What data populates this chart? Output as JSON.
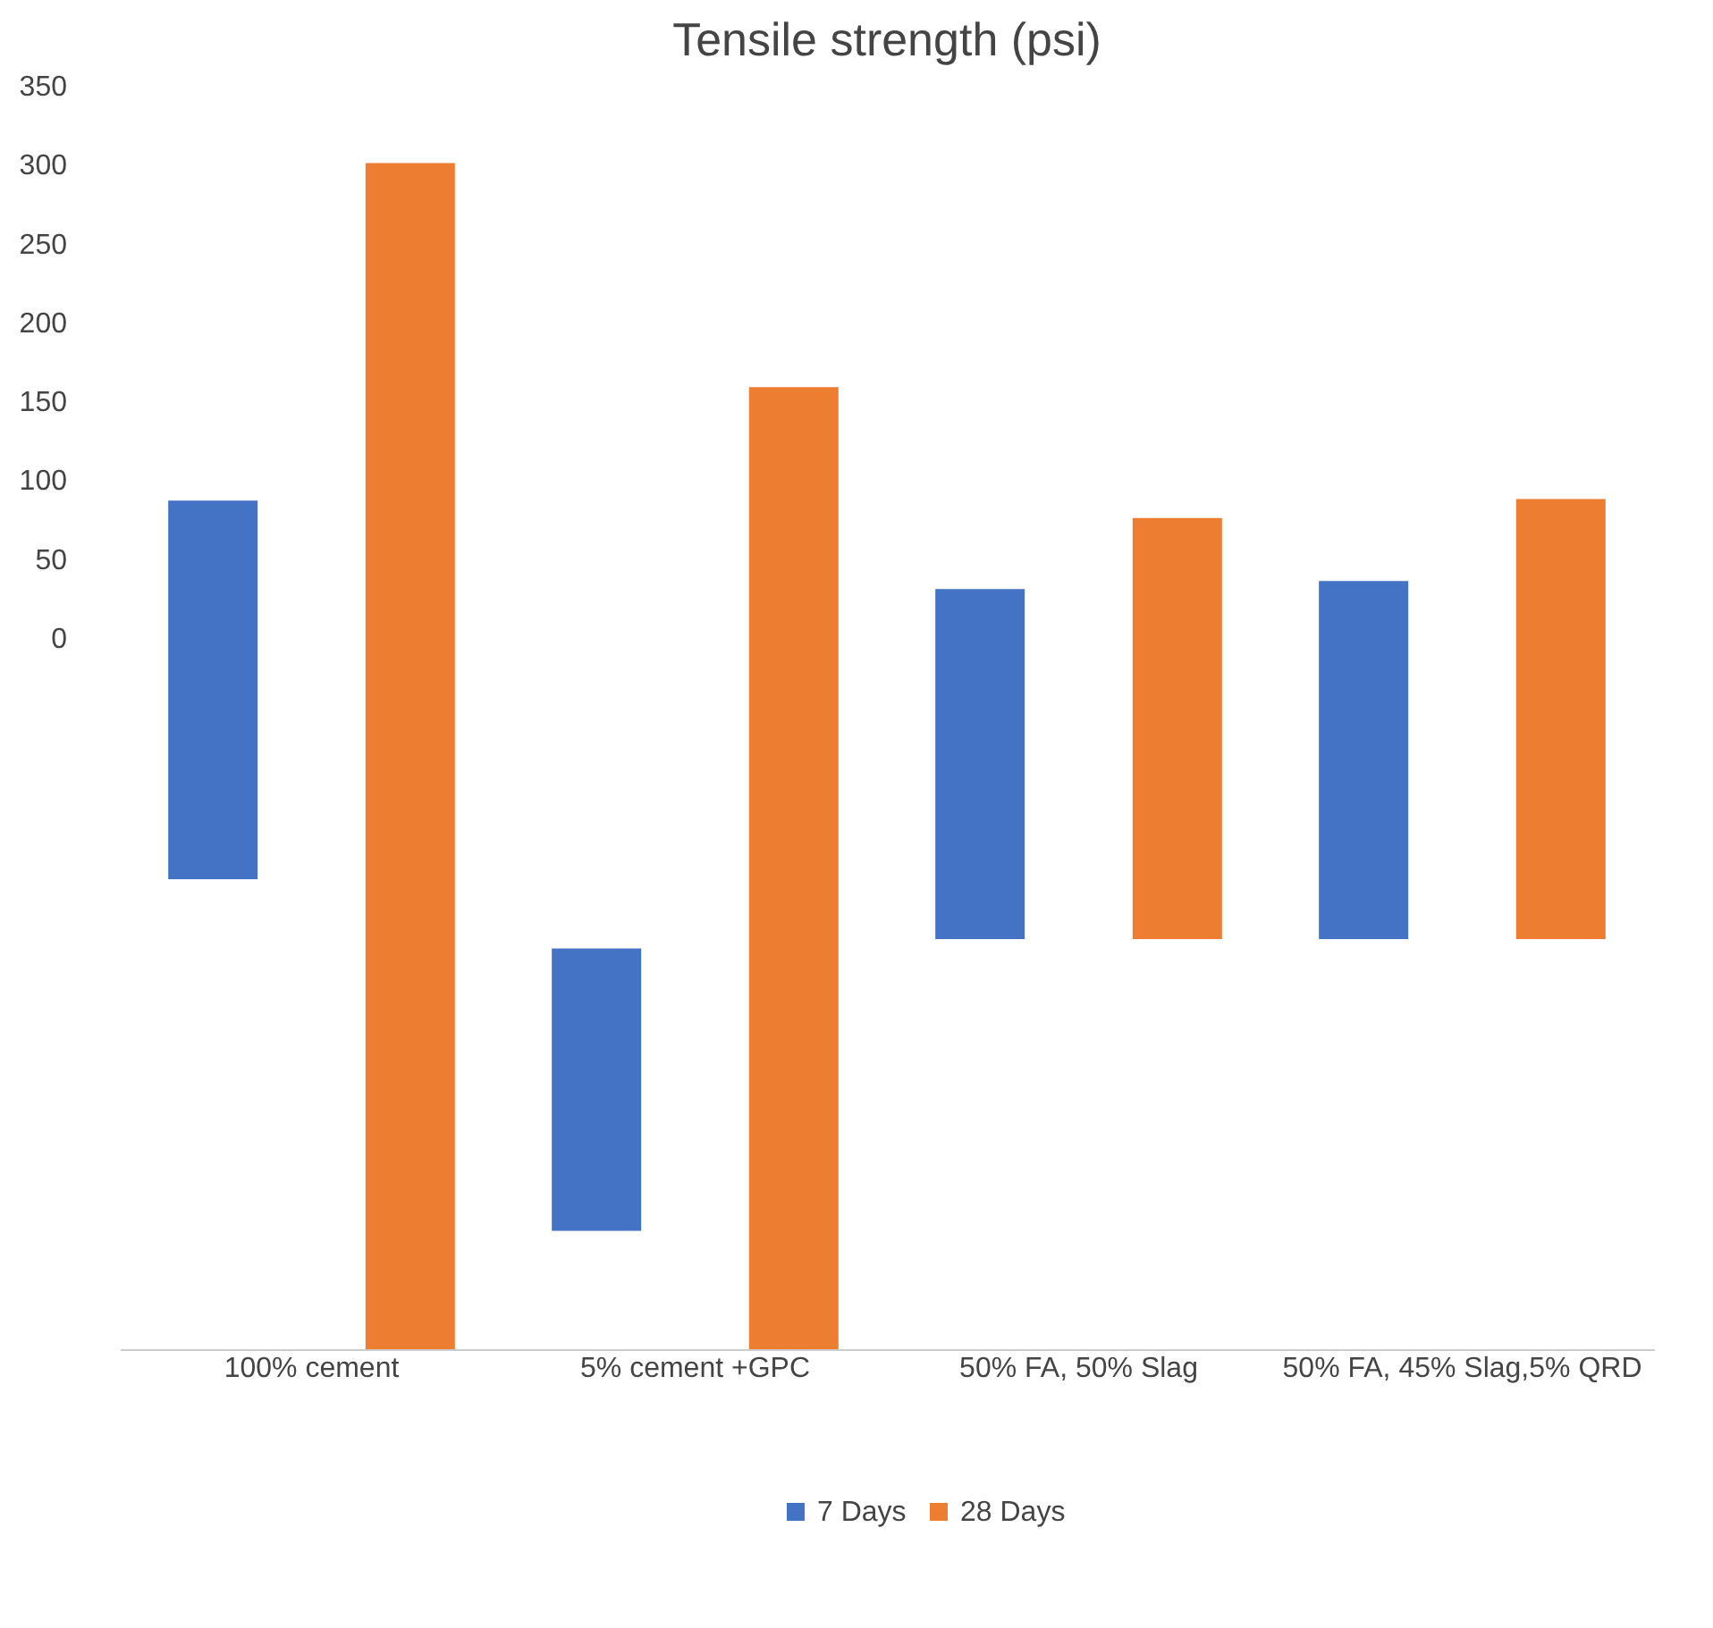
{
  "chart_data": {
    "type": "bar",
    "title": "Tensile strength (psi)",
    "categories": [
      "100% cement",
      "5% cement +GPC",
      "50% FA, 50% Slag",
      "50% FA, 45% Slag,5% QRD"
    ],
    "series": [
      {
        "name": "7 Days",
        "color": "#4472c4",
        "values": [
          240,
          179,
          222,
          227
        ],
        "base": [
          -153,
          -376,
          -191,
          -191
        ]
      },
      {
        "name": "28 Days",
        "color": "#ed7d31",
        "values": [
          752,
          610,
          267,
          279
        ],
        "base": [
          -451,
          -451,
          -191,
          -191
        ]
      }
    ],
    "ylim": [
      -451,
      350
    ],
    "yticks": [
      0,
      50,
      100,
      150,
      200,
      250,
      300,
      350
    ],
    "grid": false,
    "legend": "bottom"
  }
}
